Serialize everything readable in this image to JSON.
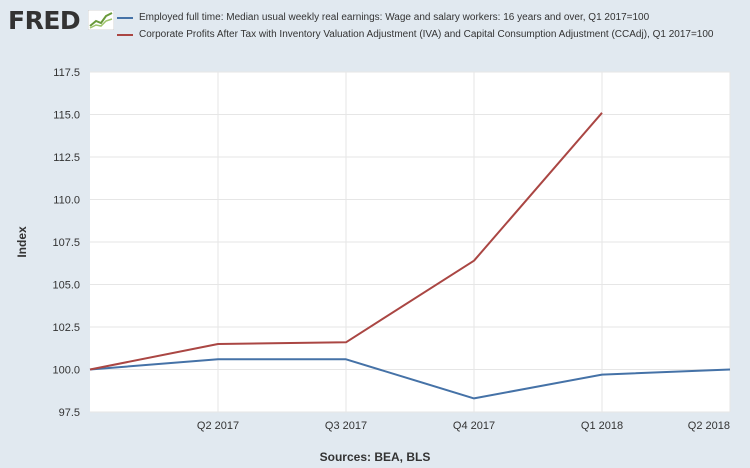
{
  "logo": {
    "text": "FRED"
  },
  "legend": [
    {
      "text": "Employed full time: Median usual weekly real earnings: Wage and salary workers: 16 years and over, Q1 2017=100",
      "color": "#4572a7"
    },
    {
      "text": "Corporate Profits After Tax with Inventory Valuation Adjustment (IVA) and Capital Consumption Adjustment (CCAdj), Q1 2017=100",
      "color": "#aa4643"
    }
  ],
  "sources": "Sources: BEA, BLS",
  "chart_data": {
    "type": "line",
    "ylabel": "Index",
    "ylim": [
      97.5,
      117.5
    ],
    "yticks": [
      "97.5",
      "100.0",
      "102.5",
      "105.0",
      "107.5",
      "110.0",
      "112.5",
      "115.0",
      "117.5"
    ],
    "xticks": [
      "Q2 2017",
      "Q3 2017",
      "Q4 2017",
      "Q1 2018",
      "Q2 2018"
    ],
    "x": [
      "Q1 2017",
      "Q2 2017",
      "Q3 2017",
      "Q4 2017",
      "Q1 2018",
      "Q2 2018"
    ],
    "grid": true,
    "series": [
      {
        "values": [
          100.0,
          100.6,
          100.6,
          98.3,
          99.7,
          100.0
        ],
        "color": "#4572a7"
      },
      {
        "values": [
          100.0,
          101.5,
          101.6,
          106.4,
          115.1,
          null
        ],
        "color": "#aa4643"
      }
    ]
  }
}
